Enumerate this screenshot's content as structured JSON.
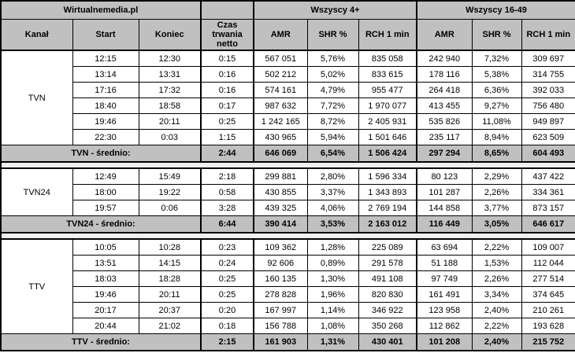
{
  "colors": {
    "header_bg": "#c0c0c0",
    "summary_bg": "#c0c0c0",
    "separator_bg": "#f0f0f0",
    "row_bg": "#ffffff",
    "border": "#000000",
    "text": "#000000"
  },
  "chart_data": {
    "type": "table",
    "title": "Wirtualnemedia.pl",
    "column_groups": [
      {
        "label": "Wirtualnemedia.pl",
        "span": 3
      },
      {
        "label": "",
        "span": 1
      },
      {
        "label": "Wszyscy 4+",
        "span": 3
      },
      {
        "label": "Wszyscy 16-49",
        "span": 3
      }
    ],
    "columns": [
      "Kanał",
      "Start",
      "Koniec",
      "Czas trwania netto",
      "AMR",
      "SHR %",
      "RCH 1 min",
      "AMR",
      "SHR %",
      "RCH 1 min"
    ],
    "sections": [
      {
        "channel": "TVN",
        "rows": [
          [
            "12:15",
            "12:30",
            "0:15",
            "567 051",
            "5,76%",
            "835 058",
            "242 940",
            "7,32%",
            "309 697"
          ],
          [
            "13:14",
            "13:31",
            "0:16",
            "502 212",
            "5,02%",
            "833 615",
            "178 116",
            "5,38%",
            "314 755"
          ],
          [
            "17:16",
            "17:32",
            "0:16",
            "574 161",
            "4,79%",
            "955 477",
            "264 418",
            "6,36%",
            "392 033"
          ],
          [
            "18:40",
            "18:58",
            "0:17",
            "987 632",
            "7,72%",
            "1 970 077",
            "413 455",
            "9,27%",
            "756 480"
          ],
          [
            "19:46",
            "20:11",
            "0:25",
            "1 242 165",
            "8,72%",
            "2 405 931",
            "535 826",
            "11,08%",
            "949 897"
          ],
          [
            "22:30",
            "0:03",
            "1:15",
            "430 965",
            "5,94%",
            "1 501 646",
            "235 117",
            "8,94%",
            "623 509"
          ]
        ],
        "summary": {
          "label": "TVN - średnio:",
          "czas": "2:44",
          "values": [
            "646 069",
            "6,54%",
            "1 506 424",
            "297 294",
            "8,65%",
            "604 493"
          ]
        }
      },
      {
        "channel": "TVN24",
        "rows": [
          [
            "12:49",
            "15:49",
            "2:18",
            "299 881",
            "2,80%",
            "1 596 334",
            "80 123",
            "2,29%",
            "437 422"
          ],
          [
            "18:00",
            "19:22",
            "0:58",
            "430 855",
            "3,37%",
            "1 343 893",
            "101 287",
            "2,26%",
            "334 361"
          ],
          [
            "19:57",
            "0:06",
            "3:28",
            "439 325",
            "4,06%",
            "2 769 194",
            "144 858",
            "3,77%",
            "873 157"
          ]
        ],
        "summary": {
          "label": "TVN24 - średnio:",
          "czas": "6:44",
          "values": [
            "390 414",
            "3,53%",
            "2 163 012",
            "116 449",
            "3,05%",
            "646 617"
          ]
        }
      },
      {
        "channel": "TTV",
        "rows": [
          [
            "10:05",
            "10:28",
            "0:23",
            "109 362",
            "1,28%",
            "225 089",
            "63 694",
            "2,22%",
            "109 007"
          ],
          [
            "13:51",
            "14:15",
            "0:24",
            "92 606",
            "0,89%",
            "291 578",
            "51 188",
            "1,53%",
            "112 044"
          ],
          [
            "18:03",
            "18:28",
            "0:25",
            "160 135",
            "1,30%",
            "491 108",
            "97 749",
            "2,26%",
            "277 514"
          ],
          [
            "19:46",
            "20:11",
            "0:25",
            "278 828",
            "1,96%",
            "820 830",
            "161 491",
            "3,34%",
            "374 645"
          ],
          [
            "20:17",
            "20:37",
            "0:20",
            "167 997",
            "1,14%",
            "346 922",
            "123 958",
            "2,40%",
            "210 261"
          ],
          [
            "20:44",
            "21:02",
            "0:18",
            "156 788",
            "1,08%",
            "350 268",
            "112 862",
            "2,22%",
            "193 628"
          ]
        ],
        "summary": {
          "label": "TTV - średnio:",
          "czas": "2:15",
          "values": [
            "161 903",
            "1,31%",
            "430 401",
            "101 208",
            "2,40%",
            "215 752"
          ]
        }
      }
    ]
  }
}
